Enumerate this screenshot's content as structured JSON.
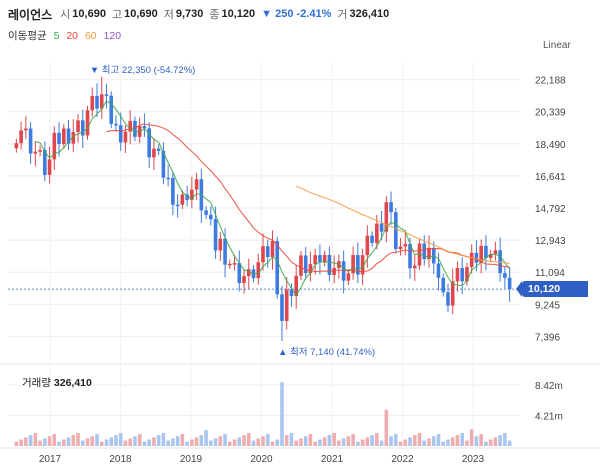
{
  "header": {
    "name": "레이언스",
    "open_label": "시",
    "open": "10,690",
    "high_label": "고",
    "high": "10,690",
    "low_label": "저",
    "low": "9,730",
    "close_label": "종",
    "close": "10,120",
    "change": "▼ 250 -2.41%",
    "volume_label": "거",
    "volume": "326,410"
  },
  "moving_average": {
    "label": "이동평균",
    "periods": [
      {
        "value": "5",
        "color": "#3aa84a"
      },
      {
        "value": "20",
        "color": "#e8463a"
      },
      {
        "value": "60",
        "color": "#f29b42"
      },
      {
        "value": "120",
        "color": "#8f52d6"
      }
    ]
  },
  "scale_mode": "Linear",
  "annotations": {
    "high": "▼ 최고 22,350 (-54.72%)",
    "low": "▲ 최저 7,140 (41.74%)"
  },
  "current_price": "10,120",
  "volume_panel": {
    "label": "거래량",
    "value": "326,410"
  },
  "colors": {
    "up": "#e0474c",
    "down": "#3d7be0",
    "ma5": "#3aa84a",
    "ma20": "#e8463a",
    "ma60": "#f29b42"
  },
  "chart_data": {
    "type": "candlestick",
    "y_ticks": [
      "22,188",
      "20,339",
      "18,490",
      "16,641",
      "14,792",
      "12,943",
      "11,094",
      "9,245",
      "7,396"
    ],
    "y_range": [
      6500,
      23200
    ],
    "x_ticks": [
      "2017",
      "2018",
      "2019",
      "2020",
      "2021",
      "2022",
      "2023"
    ],
    "volume_ticks": [
      "8.42m",
      "4.21m"
    ],
    "volume_range": [
      0,
      10.5
    ],
    "high": 22350,
    "low": 7140,
    "last": 10120
  }
}
